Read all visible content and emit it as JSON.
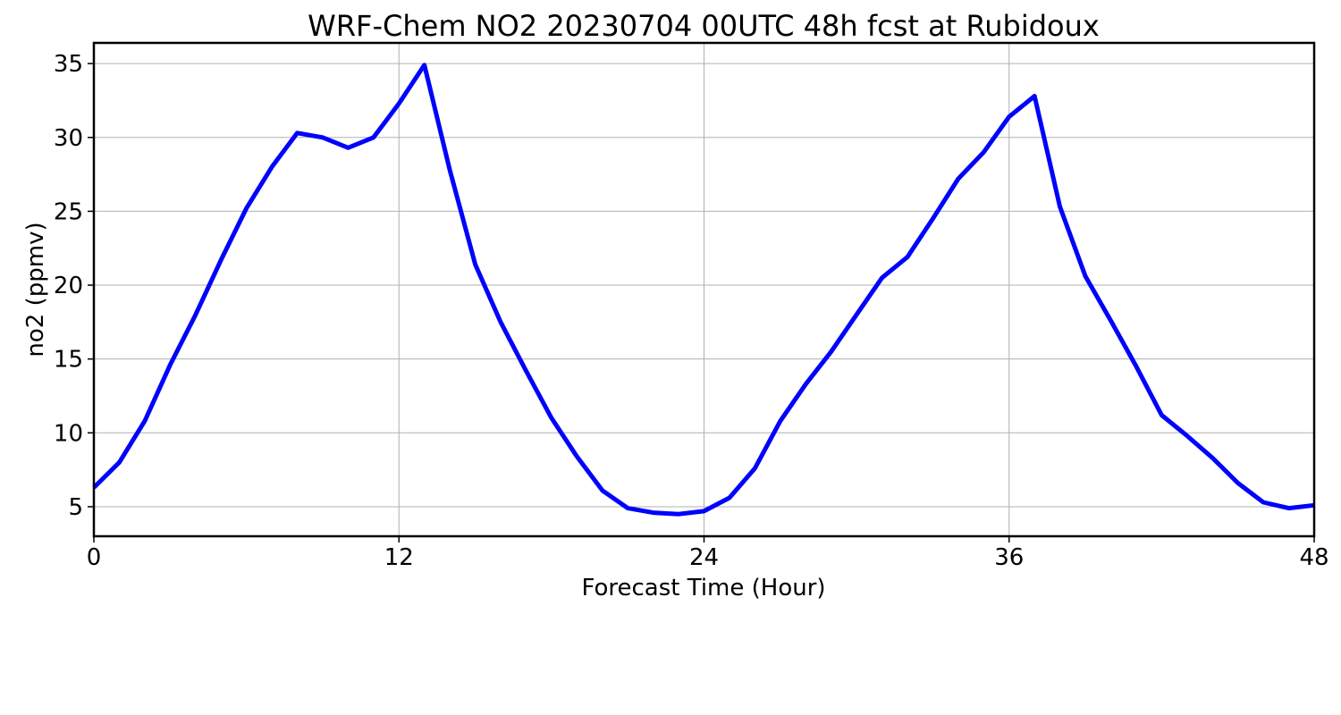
{
  "chart_data": {
    "type": "line",
    "title": "WRF-Chem NO2  20230704 00UTC 48h fcst at Rubidoux",
    "xlabel": "Forecast Time (Hour)",
    "ylabel": "no2  (ppmv)",
    "xlim": [
      0,
      48
    ],
    "ylim": [
      3,
      36.4
    ],
    "xticks": [
      0,
      12,
      24,
      36,
      48
    ],
    "yticks": [
      5,
      10,
      15,
      20,
      25,
      30,
      35
    ],
    "grid": true,
    "series": [
      {
        "color": "#0000ff",
        "x": [
          0,
          1,
          2,
          3,
          4,
          5,
          6,
          7,
          8,
          9,
          10,
          11,
          12,
          13,
          14,
          15,
          16,
          17,
          18,
          19,
          20,
          21,
          22,
          23,
          24,
          25,
          26,
          27,
          28,
          29,
          30,
          31,
          32,
          33,
          34,
          35,
          36,
          37,
          38,
          39,
          40,
          41,
          42,
          43,
          44,
          45,
          46,
          47,
          48
        ],
        "y": [
          6.3,
          8.0,
          10.8,
          14.6,
          18.0,
          21.7,
          25.2,
          28.0,
          30.3,
          30.0,
          29.3,
          30.0,
          32.3,
          34.9,
          27.8,
          21.4,
          17.5,
          14.2,
          11.0,
          8.4,
          6.1,
          4.9,
          4.6,
          4.5,
          4.7,
          5.6,
          7.6,
          10.8,
          13.3,
          15.5,
          18.0,
          20.5,
          21.9,
          24.5,
          27.2,
          29.0,
          31.4,
          32.8,
          25.3,
          20.6,
          17.6,
          14.5,
          11.2,
          9.8,
          8.3,
          6.6,
          5.3,
          4.9,
          5.1
        ]
      }
    ]
  }
}
